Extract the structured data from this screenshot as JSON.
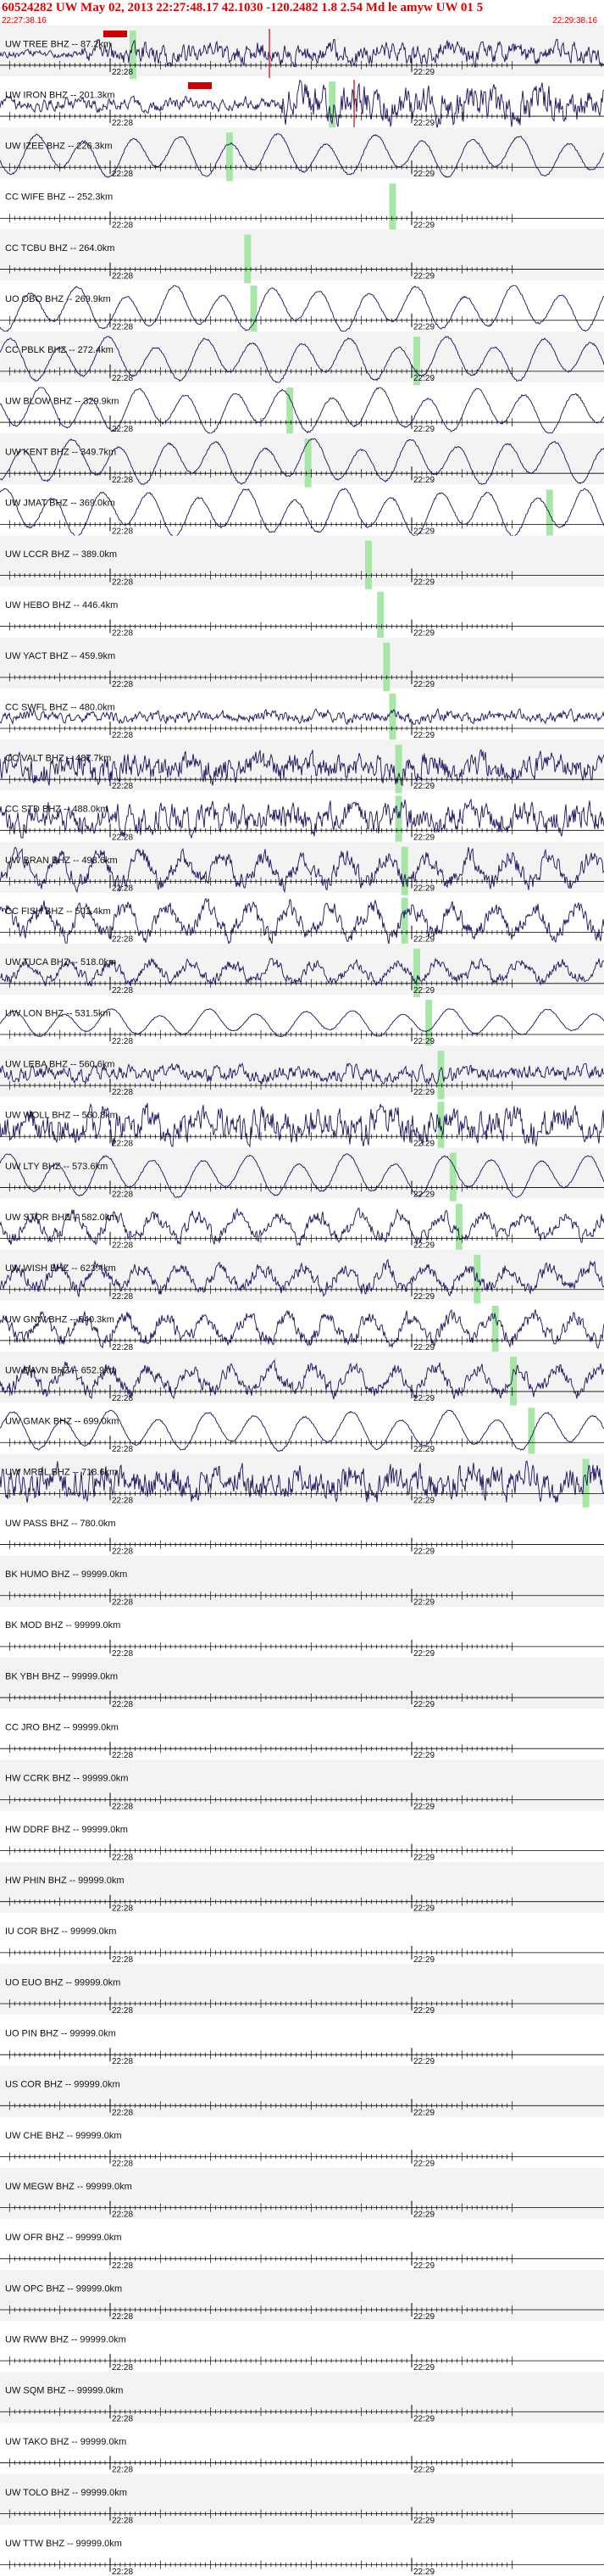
{
  "header": {
    "title": "60524282 UW May 02, 2013 22:27:48.17   42.1030 -120.2482  1.8 2.54 Md le amyw UW 01   5",
    "start_time": "22:27:38.16",
    "end_time": "22:29:38.16"
  },
  "colors": {
    "trace": "#1a0f5c",
    "pick": "#a8e6a8",
    "header_text": "#e00000",
    "marker": "#cc0000",
    "shade": "#f3f3f3"
  },
  "chart_data": {
    "type": "seismogram",
    "time_ticks": [
      "22:28",
      "22:29"
    ],
    "stations": [
      {
        "label": "UW TREE BHZ -- 87.2km",
        "amp": 0.55,
        "pick": 0.22,
        "dom": "high"
      },
      {
        "label": "UW IRON BHZ -- 201.3km",
        "amp": 0.95,
        "pick": 0.55,
        "dom": "high"
      },
      {
        "label": "UW IZEE BHZ -- 226.3km",
        "amp": 0.85,
        "pick": 0.38,
        "dom": "low"
      },
      {
        "label": "CC WIFE BHZ -- 252.3km",
        "amp": 0,
        "pick": 0.65
      },
      {
        "label": "CC TCBU BHZ -- 264.0km",
        "amp": 0,
        "pick": 0.41
      },
      {
        "label": "UO OBO BHZ -- 269.9km",
        "amp": 0.9,
        "pick": 0.42,
        "dom": "low"
      },
      {
        "label": "CC PBLK BHZ -- 272.4km",
        "amp": 0.9,
        "pick": 0.69,
        "dom": "low"
      },
      {
        "label": "UW BLOW BHZ -- 329.9km",
        "amp": 0.9,
        "pick": 0.48,
        "dom": "low"
      },
      {
        "label": "UW KENT BHZ -- 349.7km",
        "amp": 0.9,
        "pick": 0.51,
        "dom": "low"
      },
      {
        "label": "UW JMAT BHZ -- 369.0km",
        "amp": 0.95,
        "pick": 0.91,
        "dom": "low"
      },
      {
        "label": "UW LCCR BHZ -- 389.0km",
        "amp": 0,
        "pick": 0.61
      },
      {
        "label": "UW HEBO BHZ -- 446.4km",
        "amp": 0,
        "pick": 0.63
      },
      {
        "label": "UW YACT BHZ -- 459.9km",
        "amp": 0,
        "pick": 0.64
      },
      {
        "label": "CC SWFL BHZ -- 480.0km",
        "amp": 0.3,
        "pick": 0.65,
        "dom": "high"
      },
      {
        "label": "CC VALT BHZ -- 487.7km",
        "amp": 0.7,
        "pick": 0.66,
        "dom": "high"
      },
      {
        "label": "CC STD BHZ -- 488.0km",
        "amp": 0.75,
        "pick": 0.66,
        "dom": "high"
      },
      {
        "label": "UW BRAN BHZ -- 493.6km",
        "amp": 0.95,
        "pick": 0.67,
        "dom": "mixed"
      },
      {
        "label": "CC FISH BHZ -- 501.4km",
        "amp": 0.95,
        "pick": 0.67,
        "dom": "mixed"
      },
      {
        "label": "UW TUCA BHZ -- 518.0km",
        "amp": 0.6,
        "pick": 0.69,
        "dom": "mixed"
      },
      {
        "label": "UW LON BHZ -- 531.5km",
        "amp": 0.55,
        "pick": 0.71,
        "dom": "low"
      },
      {
        "label": "UW LEBA BHZ -- 560.6km",
        "amp": 0.4,
        "pick": 0.73,
        "dom": "high"
      },
      {
        "label": "UW WOLL BHZ -- 560.8km",
        "amp": 0.85,
        "pick": 0.73,
        "dom": "high"
      },
      {
        "label": "UW LTY BHZ -- 573.6km",
        "amp": 0.85,
        "pick": 0.75,
        "dom": "low"
      },
      {
        "label": "UW STOR BHZ -- 582.0km",
        "amp": 0.75,
        "pick": 0.76,
        "dom": "mixed"
      },
      {
        "label": "UW WISH BHZ -- 623.4km",
        "amp": 0.75,
        "pick": 0.79,
        "dom": "mixed"
      },
      {
        "label": "UW GNW BHZ -- 640.3km",
        "amp": 0.8,
        "pick": 0.82,
        "dom": "mixed"
      },
      {
        "label": "UW DAVN BHZ -- 652.9km",
        "amp": 0.8,
        "pick": 0.85,
        "dom": "mixed"
      },
      {
        "label": "UW GMAK BHZ -- 699.0km",
        "amp": 0.8,
        "pick": 0.88,
        "dom": "low"
      },
      {
        "label": "UW MRBL BHZ -- 718.6km",
        "amp": 0.85,
        "pick": 0.97,
        "dom": "high"
      },
      {
        "label": "UW PASS BHZ -- 780.0km",
        "amp": 0,
        "pick": null
      },
      {
        "label": "BK HUMO BHZ -- 99999.0km",
        "amp": 0,
        "pick": null
      },
      {
        "label": "BK MOD BHZ -- 99999.0km",
        "amp": 0,
        "pick": null
      },
      {
        "label": "BK YBH BHZ -- 99999.0km",
        "amp": 0,
        "pick": null
      },
      {
        "label": "CC JRO BHZ -- 99999.0km",
        "amp": 0,
        "pick": null
      },
      {
        "label": "HW CCRK BHZ -- 99999.0km",
        "amp": 0,
        "pick": null
      },
      {
        "label": "HW DDRF BHZ -- 99999.0km",
        "amp": 0,
        "pick": null
      },
      {
        "label": "HW PHIN BHZ -- 99999.0km",
        "amp": 0,
        "pick": null
      },
      {
        "label": "IU COR BHZ -- 99999.0km",
        "amp": 0,
        "pick": null
      },
      {
        "label": "UO EUO BHZ -- 99999.0km",
        "amp": 0,
        "pick": null
      },
      {
        "label": "UO PIN BHZ -- 99999.0km",
        "amp": 0,
        "pick": null
      },
      {
        "label": "US COR BHZ -- 99999.0km",
        "amp": 0,
        "pick": null
      },
      {
        "label": "UW CHE BHZ -- 99999.0km",
        "amp": 0,
        "pick": null
      },
      {
        "label": "UW MEGW BHZ -- 99999.0km",
        "amp": 0,
        "pick": null
      },
      {
        "label": "UW OFR BHZ -- 99999.0km",
        "amp": 0,
        "pick": null
      },
      {
        "label": "UW OPC BHZ -- 99999.0km",
        "amp": 0,
        "pick": null
      },
      {
        "label": "UW RWW BHZ -- 99999.0km",
        "amp": 0,
        "pick": null
      },
      {
        "label": "UW SQM BHZ -- 99999.0km",
        "amp": 0,
        "pick": null
      },
      {
        "label": "UW TAKO BHZ -- 99999.0km",
        "amp": 0,
        "pick": null
      },
      {
        "label": "UW TOLO BHZ -- 99999.0km",
        "amp": 0,
        "pick": null
      },
      {
        "label": "UW TTW BHZ -- 99999.0km",
        "amp": 0,
        "pick": null
      }
    ]
  }
}
